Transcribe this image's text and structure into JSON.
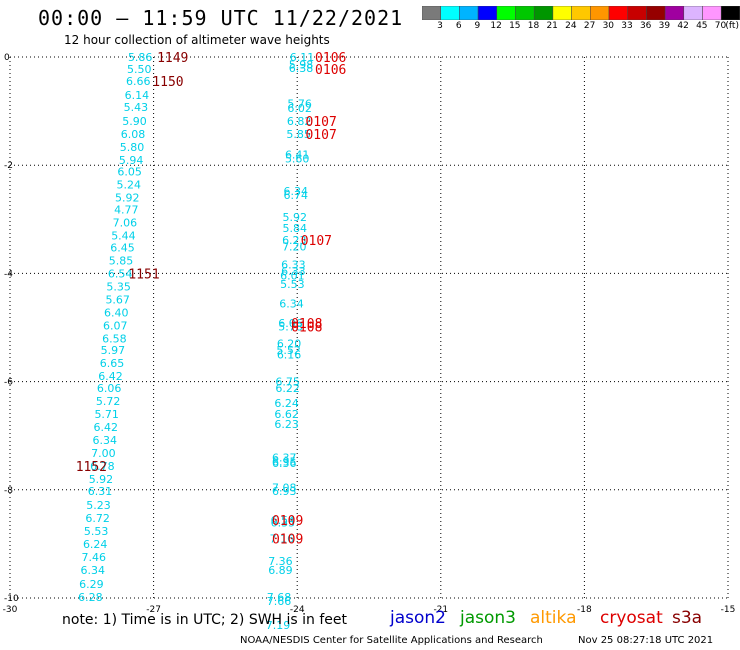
{
  "header": {
    "title": "00:00 – 11:59 UTC 11/22/2021",
    "subtitle": "12 hour collection of altimeter wave heights"
  },
  "colorbar": {
    "labels": [
      "3",
      "6",
      "9",
      "12",
      "15",
      "18",
      "21",
      "24",
      "27",
      "30",
      "33",
      "36",
      "39",
      "42",
      "45",
      "70"
    ],
    "unit": "(ft)",
    "colors": [
      "#7a7a7a",
      "#00ffff",
      "#00b4ff",
      "#0000ff",
      "#00ff00",
      "#00c800",
      "#009600",
      "#ffff00",
      "#ffc800",
      "#ff9600",
      "#ff0000",
      "#c80000",
      "#960000",
      "#a000a0",
      "#dcb4ff",
      "#ff96ff",
      "#000000"
    ]
  },
  "footer": {
    "note": "note:  1) Time is in UTC; 2) SWH is in feet",
    "credit": "NOAA/NESDIS Center for Satellite Applications and Research",
    "timestamp": "Nov 25 08:27:18 UTC 2021",
    "satellites": [
      {
        "name": "jason2",
        "color": "#0000cc"
      },
      {
        "name": "jason3",
        "color": "#009900"
      },
      {
        "name": "altika",
        "color": "#ff9900"
      },
      {
        "name": "cryosat",
        "color": "#dd0000"
      },
      {
        "name": "s3a",
        "color": "#880000"
      }
    ]
  },
  "chart_data": {
    "type": "scatter",
    "xlim": [
      -30,
      -15
    ],
    "ylim": [
      -10,
      0
    ],
    "xticks": [
      "-30",
      "-27",
      "-24",
      "-21",
      "-18",
      "-15"
    ],
    "yticks": [
      "0",
      "-2",
      "-4",
      "-6",
      "-8",
      "-10"
    ],
    "grid": true,
    "point_color": "#00d0e8",
    "track1": [
      {
        "x": -27.28,
        "y": 0.0,
        "v": "5.86"
      },
      {
        "x": -27.3,
        "y": -0.22,
        "v": "5.50"
      },
      {
        "x": -27.32,
        "y": -0.44,
        "v": "6.66"
      },
      {
        "x": -27.35,
        "y": -0.7,
        "v": "6.14"
      },
      {
        "x": -27.37,
        "y": -0.92,
        "v": "5.43"
      },
      {
        "x": -27.4,
        "y": -1.18,
        "v": "5.90"
      },
      {
        "x": -27.43,
        "y": -1.42,
        "v": "6.08"
      },
      {
        "x": -27.45,
        "y": -1.66,
        "v": "5.80"
      },
      {
        "x": -27.47,
        "y": -1.9,
        "v": "5.94"
      },
      {
        "x": -27.5,
        "y": -2.12,
        "v": "6.05"
      },
      {
        "x": -27.52,
        "y": -2.36,
        "v": "5.24"
      },
      {
        "x": -27.55,
        "y": -2.6,
        "v": "5.92"
      },
      {
        "x": -27.57,
        "y": -2.82,
        "v": "4.77"
      },
      {
        "x": -27.6,
        "y": -3.06,
        "v": "7.06"
      },
      {
        "x": -27.63,
        "y": -3.3,
        "v": "5.44"
      },
      {
        "x": -27.65,
        "y": -3.52,
        "v": "6.45"
      },
      {
        "x": -27.68,
        "y": -3.76,
        "v": "5.85"
      },
      {
        "x": -27.7,
        "y": -4.0,
        "v": "6.54"
      },
      {
        "x": -27.73,
        "y": -4.24,
        "v": "5.35"
      },
      {
        "x": -27.75,
        "y": -4.48,
        "v": "5.67"
      },
      {
        "x": -27.78,
        "y": -4.72,
        "v": "6.40"
      },
      {
        "x": -27.8,
        "y": -4.96,
        "v": "6.07"
      },
      {
        "x": -27.82,
        "y": -5.2,
        "v": "6.58"
      },
      {
        "x": -27.85,
        "y": -5.42,
        "v": "5.97"
      },
      {
        "x": -27.87,
        "y": -5.66,
        "v": "6.65"
      },
      {
        "x": -27.9,
        "y": -5.9,
        "v": "6.42"
      },
      {
        "x": -27.93,
        "y": -6.12,
        "v": "6.06"
      },
      {
        "x": -27.95,
        "y": -6.36,
        "v": "5.72"
      },
      {
        "x": -27.98,
        "y": -6.6,
        "v": "5.71"
      },
      {
        "x": -28.0,
        "y": -6.84,
        "v": "6.42"
      },
      {
        "x": -28.02,
        "y": -7.08,
        "v": "6.34"
      },
      {
        "x": -28.05,
        "y": -7.32,
        "v": "7.00"
      },
      {
        "x": -28.07,
        "y": -7.56,
        "v": "6.78"
      },
      {
        "x": -28.1,
        "y": -7.8,
        "v": "5.92"
      },
      {
        "x": -28.12,
        "y": -8.02,
        "v": "6.31"
      },
      {
        "x": -28.15,
        "y": -8.28,
        "v": "5.23"
      },
      {
        "x": -28.17,
        "y": -8.52,
        "v": "6.72"
      },
      {
        "x": -28.2,
        "y": -8.76,
        "v": "5.53"
      },
      {
        "x": -28.22,
        "y": -9.0,
        "v": "6.24"
      },
      {
        "x": -28.25,
        "y": -9.24,
        "v": "7.46"
      },
      {
        "x": -28.27,
        "y": -9.48,
        "v": "6.34"
      },
      {
        "x": -28.3,
        "y": -9.74,
        "v": "6.29"
      },
      {
        "x": -28.32,
        "y": -9.98,
        "v": "6.28"
      }
    ],
    "track2": [
      {
        "x": -23.9,
        "y": 0.0,
        "v": "6.11"
      },
      {
        "x": -23.92,
        "y": -0.2,
        "v": "6.38"
      },
      {
        "x": -23.92,
        "y": -0.14,
        "v": "5.98"
      },
      {
        "x": -23.95,
        "y": -0.86,
        "v": "5.76"
      },
      {
        "x": -23.95,
        "y": -0.94,
        "v": "6.02"
      },
      {
        "x": -23.96,
        "y": -1.18,
        "v": "6.82"
      },
      {
        "x": -23.97,
        "y": -1.42,
        "v": "5.85"
      },
      {
        "x": -24.0,
        "y": -1.8,
        "v": "6.41"
      },
      {
        "x": -24.0,
        "y": -1.88,
        "v": "5.60"
      },
      {
        "x": -24.03,
        "y": -2.48,
        "v": "6.34"
      },
      {
        "x": -24.03,
        "y": -2.55,
        "v": "6.74"
      },
      {
        "x": -24.05,
        "y": -2.96,
        "v": "5.92"
      },
      {
        "x": -24.05,
        "y": -3.16,
        "v": "5.84"
      },
      {
        "x": -24.06,
        "y": -3.38,
        "v": "6.23"
      },
      {
        "x": -24.06,
        "y": -3.5,
        "v": "7.20"
      },
      {
        "x": -24.08,
        "y": -3.84,
        "v": "6.33"
      },
      {
        "x": -24.08,
        "y": -3.96,
        "v": "6.33"
      },
      {
        "x": -24.1,
        "y": -4.04,
        "v": "6.01"
      },
      {
        "x": -24.1,
        "y": -4.2,
        "v": "5.53"
      },
      {
        "x": -24.12,
        "y": -4.56,
        "v": "6.34"
      },
      {
        "x": -24.14,
        "y": -4.92,
        "v": "6.06"
      },
      {
        "x": -24.14,
        "y": -4.98,
        "v": "5.78"
      },
      {
        "x": -24.17,
        "y": -5.3,
        "v": "6.20"
      },
      {
        "x": -24.17,
        "y": -5.5,
        "v": "6.16"
      },
      {
        "x": -24.18,
        "y": -5.42,
        "v": "5.52"
      },
      {
        "x": -24.2,
        "y": -6.0,
        "v": "6.75"
      },
      {
        "x": -24.2,
        "y": -6.12,
        "v": "6.22"
      },
      {
        "x": -24.22,
        "y": -6.4,
        "v": "6.24"
      },
      {
        "x": -24.22,
        "y": -6.6,
        "v": "6.62"
      },
      {
        "x": -24.22,
        "y": -6.78,
        "v": "6.23"
      },
      {
        "x": -24.27,
        "y": -7.4,
        "v": "6.37"
      },
      {
        "x": -24.27,
        "y": -7.48,
        "v": "6.95"
      },
      {
        "x": -24.27,
        "y": -7.5,
        "v": "6.36"
      },
      {
        "x": -24.27,
        "y": -7.96,
        "v": "7.08"
      },
      {
        "x": -24.27,
        "y": -8.02,
        "v": "6.93"
      },
      {
        "x": -24.3,
        "y": -8.56,
        "v": "6.54"
      },
      {
        "x": -24.3,
        "y": -8.6,
        "v": "6.35"
      },
      {
        "x": -24.32,
        "y": -8.9,
        "v": "7.16"
      },
      {
        "x": -24.35,
        "y": -9.32,
        "v": "7.36"
      },
      {
        "x": -24.35,
        "y": -9.48,
        "v": "6.89"
      },
      {
        "x": -24.38,
        "y": -9.98,
        "v": "7.68"
      },
      {
        "x": -24.38,
        "y": -10.06,
        "v": "7.66"
      },
      {
        "x": -24.4,
        "y": -10.5,
        "v": "7.19"
      }
    ],
    "time_labels": [
      {
        "x": -26.6,
        "y": 0.0,
        "v": "1149",
        "color": "#880000"
      },
      {
        "x": -26.7,
        "y": -0.44,
        "v": "1150",
        "color": "#880000"
      },
      {
        "x": -27.2,
        "y": -4.0,
        "v": "1151",
        "color": "#880000"
      },
      {
        "x": -28.3,
        "y": -7.56,
        "v": "1152",
        "color": "#880000"
      },
      {
        "x": -23.3,
        "y": 0.0,
        "v": "0106",
        "color": "#dd0000"
      },
      {
        "x": -23.3,
        "y": -0.22,
        "v": "0106",
        "color": "#dd0000"
      },
      {
        "x": -23.5,
        "y": -1.18,
        "v": "0107",
        "color": "#dd0000"
      },
      {
        "x": -23.5,
        "y": -1.42,
        "v": "0107",
        "color": "#dd0000"
      },
      {
        "x": -23.6,
        "y": -3.38,
        "v": "0107",
        "color": "#dd0000"
      },
      {
        "x": -23.8,
        "y": -4.92,
        "v": "0108",
        "color": "#dd0000"
      },
      {
        "x": -23.8,
        "y": -4.98,
        "v": "0108",
        "color": "#dd0000"
      },
      {
        "x": -24.2,
        "y": -8.56,
        "v": "0109",
        "color": "#dd0000"
      },
      {
        "x": -24.2,
        "y": -8.9,
        "v": "0109",
        "color": "#dd0000"
      }
    ]
  }
}
